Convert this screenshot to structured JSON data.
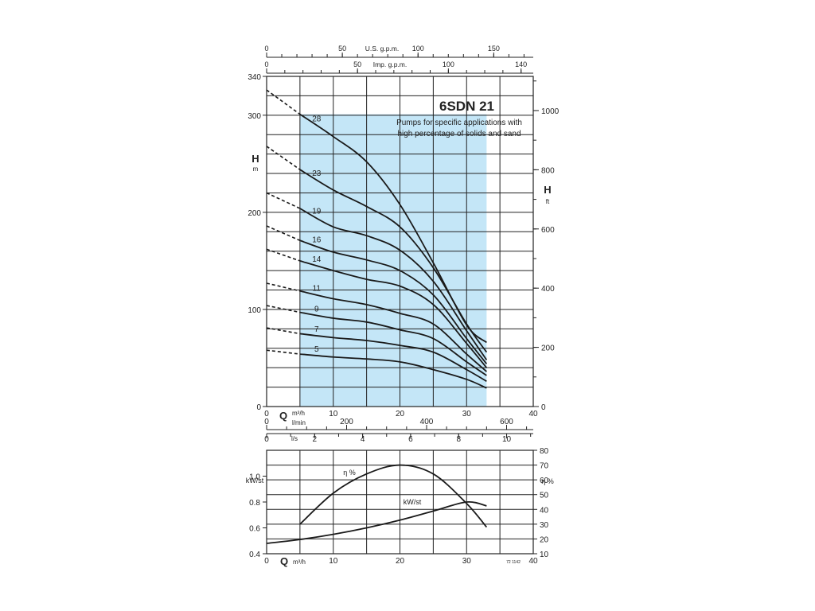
{
  "chart_data": [
    {
      "type": "line",
      "title": "6SDN 21",
      "subtitle": [
        "Pumps for specific applications with",
        "high percentage of solids and sand"
      ],
      "x": {
        "unit": "m³/h",
        "axis_letter": "Q",
        "range": [
          0,
          40
        ],
        "ticks": [
          0,
          10,
          20,
          30,
          40
        ]
      },
      "x_secondary": [
        {
          "label": "l/min",
          "range": [
            0,
            666.7
          ],
          "ticks": [
            0,
            200,
            400,
            600
          ]
        },
        {
          "label": "l/s",
          "range": [
            0,
            11.11
          ],
          "ticks": [
            0,
            2,
            4,
            6,
            8,
            10
          ]
        }
      ],
      "x_top": [
        {
          "label": "U.S. g.p.m.",
          "range": [
            0,
            176.1
          ],
          "ticks": [
            0,
            50,
            100,
            150
          ]
        },
        {
          "label": "Imp. g.p.m.",
          "range": [
            0,
            146.7
          ],
          "ticks": [
            0,
            50,
            100,
            140
          ]
        }
      ],
      "y": {
        "letter": "H",
        "unit": "m",
        "range": [
          0,
          340
        ],
        "ticks": [
          0,
          100,
          200,
          300,
          340
        ]
      },
      "y_right": {
        "letter": "H",
        "unit": "ft",
        "range": [
          0,
          1115.5
        ],
        "ticks": [
          0,
          200,
          400,
          600,
          800,
          1000
        ]
      },
      "shaded_range": {
        "x": [
          5,
          33
        ],
        "color": "#c4e6f7"
      },
      "dashed_extension_x": [
        0,
        5
      ],
      "series": [
        {
          "name": "28",
          "x": [
            0,
            5,
            10,
            15,
            20,
            25,
            30,
            33
          ],
          "y": [
            326,
            301,
            278,
            252,
            208,
            148,
            84,
            66
          ]
        },
        {
          "name": "23",
          "x": [
            0,
            5,
            10,
            15,
            20,
            25,
            30,
            33
          ],
          "y": [
            268,
            244,
            223,
            206,
            185,
            143,
            85,
            56
          ]
        },
        {
          "name": "19",
          "x": [
            0,
            5,
            10,
            15,
            20,
            25,
            30,
            33
          ],
          "y": [
            220,
            204,
            185,
            176,
            161,
            129,
            78,
            48
          ]
        },
        {
          "name": "16",
          "x": [
            0,
            5,
            10,
            15,
            20,
            25,
            30,
            33
          ],
          "y": [
            186,
            171,
            159,
            151,
            140,
            115,
            70,
            44
          ]
        },
        {
          "name": "14",
          "x": [
            0,
            5,
            10,
            15,
            20,
            25,
            30,
            33
          ],
          "y": [
            162,
            150,
            140,
            131,
            124,
            105,
            65,
            40
          ]
        },
        {
          "name": "11",
          "x": [
            0,
            5,
            10,
            15,
            20,
            25,
            30,
            33
          ],
          "y": [
            127,
            119,
            111,
            105,
            96,
            85,
            54,
            36
          ]
        },
        {
          "name": "9",
          "x": [
            0,
            5,
            10,
            15,
            20,
            25,
            30,
            33
          ],
          "y": [
            104,
            97,
            91,
            87,
            79,
            70,
            46,
            32
          ]
        },
        {
          "name": "7",
          "x": [
            0,
            5,
            10,
            15,
            20,
            25,
            30,
            33
          ],
          "y": [
            81,
            75,
            71,
            68,
            63,
            56,
            38,
            26
          ]
        },
        {
          "name": "5",
          "x": [
            0,
            5,
            10,
            15,
            20,
            25,
            30,
            33
          ],
          "y": [
            58,
            54,
            51,
            49,
            46,
            38,
            28,
            19
          ]
        }
      ],
      "series_label_x": 7.5,
      "grid": true
    },
    {
      "type": "line",
      "x": {
        "unit": "m³/h",
        "axis_letter": "Q",
        "range": [
          0,
          40
        ],
        "ticks": [
          0,
          10,
          20,
          30,
          40
        ]
      },
      "y_left": {
        "label": "kW/st",
        "range": [
          0.4,
          1.2
        ],
        "ticks": [
          0.4,
          0.6,
          0.8,
          1.0
        ]
      },
      "y_right": {
        "label": "η %",
        "range": [
          10,
          80
        ],
        "ticks": [
          10,
          20,
          30,
          40,
          50,
          60,
          70,
          80
        ]
      },
      "series": [
        {
          "name": "η %",
          "axis": "right",
          "x": [
            5,
            10,
            15,
            20,
            25,
            30,
            33
          ],
          "y": [
            30,
            51,
            64,
            70,
            64,
            44,
            28
          ]
        },
        {
          "name": "kW/st",
          "axis": "left",
          "x": [
            0,
            5,
            10,
            15,
            20,
            25,
            30,
            33
          ],
          "y": [
            0.48,
            0.51,
            0.55,
            0.6,
            0.66,
            0.73,
            0.8,
            0.77
          ]
        }
      ],
      "footnote": "72 1142",
      "grid": true
    }
  ]
}
